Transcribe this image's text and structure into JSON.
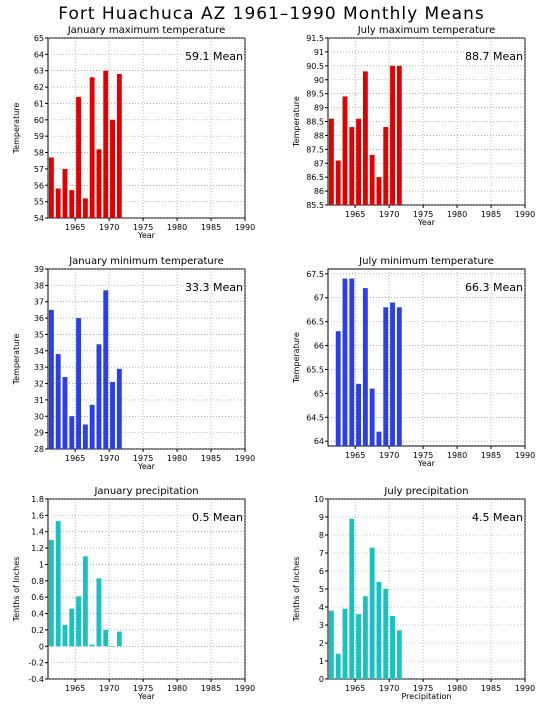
{
  "title": "Fort Huachuca AZ   1961–1990 Monthly Means",
  "chart_data": [
    {
      "type": "bar",
      "title": "January maximum temperature",
      "ylabel": "Temperature",
      "xlabel": "Year",
      "mean_label": "59.1  Mean",
      "color": "#e00000",
      "xlim": [
        1961,
        1990
      ],
      "ylim": [
        54,
        65
      ],
      "yticks": [
        "54",
        "55",
        "56",
        "57",
        "58",
        "59",
        "60",
        "61",
        "62",
        "63",
        "64",
        "65"
      ],
      "xticks": [
        "1965",
        "1970",
        "1975",
        "1980",
        "1985",
        "1990"
      ],
      "x": [
        1961,
        1962,
        1963,
        1964,
        1965,
        1966,
        1967,
        1968,
        1969,
        1970,
        1971
      ],
      "values": [
        57.7,
        55.8,
        57.0,
        55.7,
        61.4,
        55.2,
        62.6,
        58.2,
        63.0,
        60.0,
        62.8
      ]
    },
    {
      "type": "bar",
      "title": "July maximum temperature",
      "ylabel": "Temperature",
      "xlabel": "Year",
      "mean_label": "88.7  Mean",
      "color": "#e00000",
      "xlim": [
        1961,
        1990
      ],
      "ylim": [
        85.5,
        91.5
      ],
      "yticks": [
        "85.5",
        "86",
        "86.5",
        "87",
        "87.5",
        "88",
        "88.5",
        "89",
        "89.5",
        "90",
        "90.5",
        "91",
        "91.5"
      ],
      "xticks": [
        "1965",
        "1970",
        "1975",
        "1980",
        "1985",
        "1990"
      ],
      "x": [
        1961,
        1962,
        1963,
        1964,
        1965,
        1966,
        1967,
        1968,
        1969,
        1970,
        1971
      ],
      "values": [
        88.6,
        87.1,
        89.4,
        88.3,
        88.6,
        90.3,
        87.3,
        86.5,
        88.3,
        90.5,
        90.5
      ]
    },
    {
      "type": "bar",
      "title": "January minimum temperature",
      "ylabel": "Temperature",
      "xlabel": "Year",
      "mean_label": "33.3  Mean",
      "color": "#2a3fe8",
      "xlim": [
        1961,
        1990
      ],
      "ylim": [
        28,
        39
      ],
      "yticks": [
        "28",
        "29",
        "30",
        "31",
        "32",
        "33",
        "34",
        "35",
        "36",
        "37",
        "38",
        "39"
      ],
      "xticks": [
        "1965",
        "1970",
        "1975",
        "1980",
        "1985",
        "1990"
      ],
      "x": [
        1961,
        1962,
        1963,
        1964,
        1965,
        1966,
        1967,
        1968,
        1969,
        1970,
        1971
      ],
      "values": [
        36.5,
        33.8,
        32.4,
        30.0,
        36.0,
        29.5,
        30.7,
        34.4,
        37.7,
        32.1,
        32.9
      ]
    },
    {
      "type": "bar",
      "title": "July minimum temperature",
      "ylabel": "Temperature",
      "xlabel": "Year",
      "mean_label": "66.3  Mean",
      "color": "#2a3fe8",
      "xlim": [
        1961,
        1990
      ],
      "ylim": [
        63.9,
        67.6
      ],
      "yticks": [
        "64",
        "64.5",
        "65",
        "65.5",
        "66",
        "66.5",
        "67",
        "67.5"
      ],
      "ytick_values": [
        64,
        64.5,
        65,
        65.5,
        66,
        66.5,
        67,
        67.5
      ],
      "xticks": [
        "1965",
        "1970",
        "1975",
        "1980",
        "1985",
        "1990"
      ],
      "x": [
        1962,
        1963,
        1964,
        1965,
        1966,
        1967,
        1968,
        1969,
        1970,
        1971
      ],
      "values": [
        66.3,
        67.4,
        67.4,
        65.2,
        67.2,
        65.1,
        64.2,
        66.8,
        66.9,
        66.8
      ]
    },
    {
      "type": "bar",
      "title": "January precipitation",
      "ylabel": "Tenths of Inches",
      "xlabel": "Year",
      "mean_label": "0.5  Mean",
      "color": "#19c2c2",
      "xlim": [
        1961,
        1990
      ],
      "ylim": [
        -0.4,
        1.8
      ],
      "yticks": [
        "-0.4",
        "-0.2",
        "0",
        "0.2",
        "0.4",
        "0.6",
        "0.8",
        "1",
        "1.2",
        "1.4",
        "1.6",
        "1.8"
      ],
      "xticks": [
        "1965",
        "1970",
        "1975",
        "1980",
        "1985",
        "1990"
      ],
      "x": [
        1961,
        1962,
        1963,
        1964,
        1965,
        1966,
        1967,
        1968,
        1969,
        1970,
        1971
      ],
      "values": [
        1.3,
        1.53,
        0.26,
        0.46,
        0.61,
        1.1,
        0.02,
        0.83,
        0.2,
        0.0,
        0.18
      ]
    },
    {
      "type": "bar",
      "title": "July precipitation",
      "ylabel": "Tenths of Inches",
      "xlabel": "Precipitation",
      "mean_label": "4.5  Mean",
      "color": "#19c2c2",
      "xlim": [
        1961,
        1990
      ],
      "ylim": [
        0,
        10
      ],
      "yticks": [
        "0",
        "1",
        "2",
        "3",
        "4",
        "5",
        "6",
        "7",
        "8",
        "9",
        "10"
      ],
      "xticks": [
        "1965",
        "1970",
        "1975",
        "1980",
        "1985",
        "1990"
      ],
      "x": [
        1961,
        1962,
        1963,
        1964,
        1965,
        1966,
        1967,
        1968,
        1969,
        1970,
        1971
      ],
      "values": [
        3.8,
        1.4,
        3.9,
        8.9,
        3.6,
        4.6,
        7.3,
        5.4,
        5.0,
        3.5,
        2.7
      ]
    }
  ]
}
